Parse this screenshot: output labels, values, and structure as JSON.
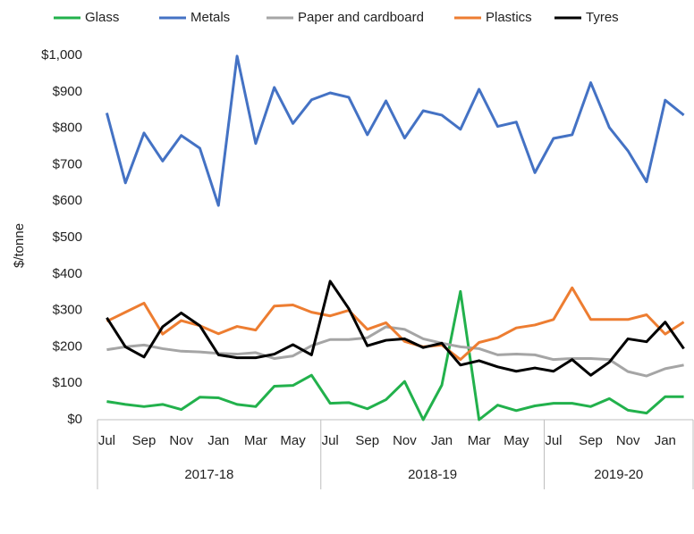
{
  "chart_data": {
    "type": "line",
    "y_label": "$/tonne",
    "categories": [
      "Jul",
      null,
      "Sep",
      null,
      "Nov",
      null,
      "Jan",
      null,
      "Mar",
      null,
      "May",
      null,
      "Jul",
      null,
      "Sep",
      null,
      "Nov",
      null,
      "Jan",
      null,
      "Mar",
      null,
      "May",
      null,
      "Jul",
      null,
      "Sep",
      null,
      "Nov",
      null,
      "Jan",
      null
    ],
    "x_groups": [
      "2017-18",
      "2018-19",
      "2019-20"
    ],
    "ylim": [
      0,
      1000
    ],
    "yticks": [
      {
        "value": 0,
        "label": "$0"
      },
      {
        "value": 100,
        "label": "$100"
      },
      {
        "value": 200,
        "label": "$200"
      },
      {
        "value": 300,
        "label": "$300"
      },
      {
        "value": 400,
        "label": "$400"
      },
      {
        "value": 500,
        "label": "$500"
      },
      {
        "value": 600,
        "label": "$600"
      },
      {
        "value": 700,
        "label": "$700"
      },
      {
        "value": 800,
        "label": "$800"
      },
      {
        "value": 900,
        "label": "$900"
      },
      {
        "value": 1000,
        "label": "$1,000"
      }
    ],
    "grid": false,
    "legend": "top",
    "series": [
      {
        "name": "Glass",
        "color": "#22b14c",
        "values": [
          50,
          42,
          36,
          42,
          28,
          62,
          60,
          42,
          36,
          92,
          94,
          122,
          45,
          47,
          30,
          55,
          105,
          0,
          95,
          352,
          0,
          40,
          25,
          38,
          45,
          45,
          36,
          58,
          26,
          18,
          63,
          63
        ]
      },
      {
        "name": "Metals",
        "color": "#4472c4",
        "values": [
          842,
          650,
          787,
          710,
          780,
          745,
          588,
          998,
          758,
          912,
          813,
          878,
          897,
          885,
          782,
          875,
          773,
          848,
          836,
          797,
          907,
          805,
          817,
          678,
          772,
          782,
          925,
          802,
          738,
          653,
          877,
          836
        ]
      },
      {
        "name": "Paper and cardboard",
        "color": "#a5a5a5",
        "values": [
          192,
          200,
          205,
          195,
          188,
          186,
          182,
          180,
          184,
          168,
          175,
          203,
          220,
          220,
          225,
          255,
          248,
          222,
          210,
          200,
          195,
          178,
          180,
          178,
          165,
          168,
          168,
          165,
          132,
          120,
          140,
          150
        ]
      },
      {
        "name": "Plastics",
        "color": "#ed7d31",
        "values": [
          270,
          295,
          320,
          235,
          272,
          258,
          236,
          256,
          246,
          312,
          315,
          295,
          285,
          300,
          248,
          266,
          215,
          200,
          205,
          165,
          212,
          225,
          252,
          260,
          275,
          362,
          275,
          275,
          275,
          288,
          235,
          268
        ]
      },
      {
        "name": "Tyres",
        "color": "#000000",
        "values": [
          280,
          200,
          172,
          255,
          293,
          258,
          178,
          170,
          170,
          180,
          206,
          178,
          380,
          305,
          203,
          218,
          222,
          198,
          210,
          150,
          162,
          145,
          133,
          142,
          133,
          165,
          122,
          158,
          222,
          214,
          268,
          195
        ]
      }
    ]
  }
}
